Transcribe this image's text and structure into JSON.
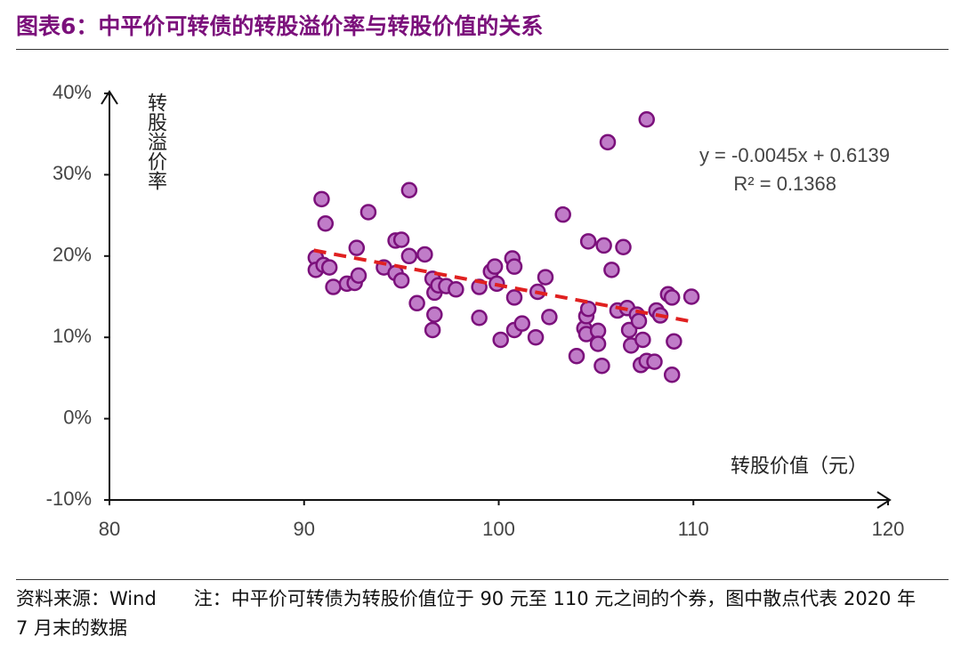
{
  "title": "图表6：中平价可转债的转股溢价率与转股价值的关系",
  "chart_data": {
    "type": "scatter",
    "y_label": "转股溢价率",
    "x_label": "转股价值（元）",
    "annotations": [
      "y = -0.0045x + 0.6139",
      "R² = 0.1368"
    ],
    "xlim": [
      80,
      120
    ],
    "xticks": [
      80,
      90,
      100,
      110,
      120
    ],
    "ylim": [
      -10,
      40
    ],
    "yticks": [
      {
        "value": -10,
        "label": "-10%"
      },
      {
        "value": 0,
        "label": "0%"
      },
      {
        "value": 10,
        "label": "10%"
      },
      {
        "value": 20,
        "label": "20%"
      },
      {
        "value": 30,
        "label": "30%"
      },
      {
        "value": 40,
        "label": "40%"
      }
    ],
    "color": "#c07cc8",
    "edgecolor": "#7b107b",
    "x": [
      90.9,
      91.1,
      90.6,
      90.6,
      91.0,
      91.3,
      91.5,
      92.2,
      92.6,
      92.7,
      92.8,
      93.3,
      94.1,
      94.7,
      95.0,
      94.7,
      95.0,
      95.4,
      95.4,
      95.8,
      96.2,
      96.6,
      96.7,
      96.6,
      96.7,
      96.9,
      97.3,
      97.8,
      99.0,
      99.0,
      99.6,
      99.8,
      99.9,
      100.1,
      100.7,
      100.8,
      100.8,
      100.8,
      101.2,
      101.9,
      102.0,
      102.4,
      102.6,
      103.3,
      104.0,
      104.4,
      104.5,
      104.5,
      104.6,
      104.6,
      105.1,
      105.1,
      105.3,
      105.4,
      105.6,
      105.8,
      106.1,
      106.4,
      106.6,
      106.7,
      106.8,
      107.1,
      107.2,
      107.3,
      107.4,
      107.6,
      107.6,
      108.0,
      108.1,
      108.3,
      108.7,
      108.9,
      108.9,
      109.0,
      109.9
    ],
    "values": [
      27.0,
      24.0,
      19.8,
      18.3,
      18.9,
      18.6,
      16.2,
      16.6,
      16.7,
      21.0,
      17.6,
      25.4,
      18.6,
      21.9,
      22.0,
      17.9,
      17.0,
      28.1,
      20.0,
      14.2,
      20.2,
      17.2,
      12.8,
      10.9,
      15.5,
      16.4,
      16.3,
      15.9,
      12.4,
      16.2,
      18.1,
      18.7,
      16.6,
      9.7,
      19.7,
      18.7,
      14.9,
      10.9,
      11.7,
      10.0,
      15.6,
      17.4,
      12.5,
      25.1,
      7.7,
      11.1,
      12.6,
      10.4,
      13.5,
      21.8,
      10.8,
      9.2,
      6.5,
      21.3,
      34.0,
      18.3,
      13.3,
      21.1,
      13.6,
      10.9,
      9.0,
      12.8,
      12.0,
      6.6,
      9.7,
      7.1,
      36.8,
      7.0,
      13.3,
      12.7,
      15.3,
      14.9,
      5.4,
      9.5,
      15.0
    ],
    "trendline": {
      "x": [
        90.5,
        110
      ],
      "values": [
        20.7,
        11.9
      ],
      "color": "#e02020"
    }
  },
  "footer": "资料来源：Wind　　注：中平价可转债为转股价值位于 90 元至 110 元之间的个券，图中散点代表 2020 年 7 月末的数据"
}
